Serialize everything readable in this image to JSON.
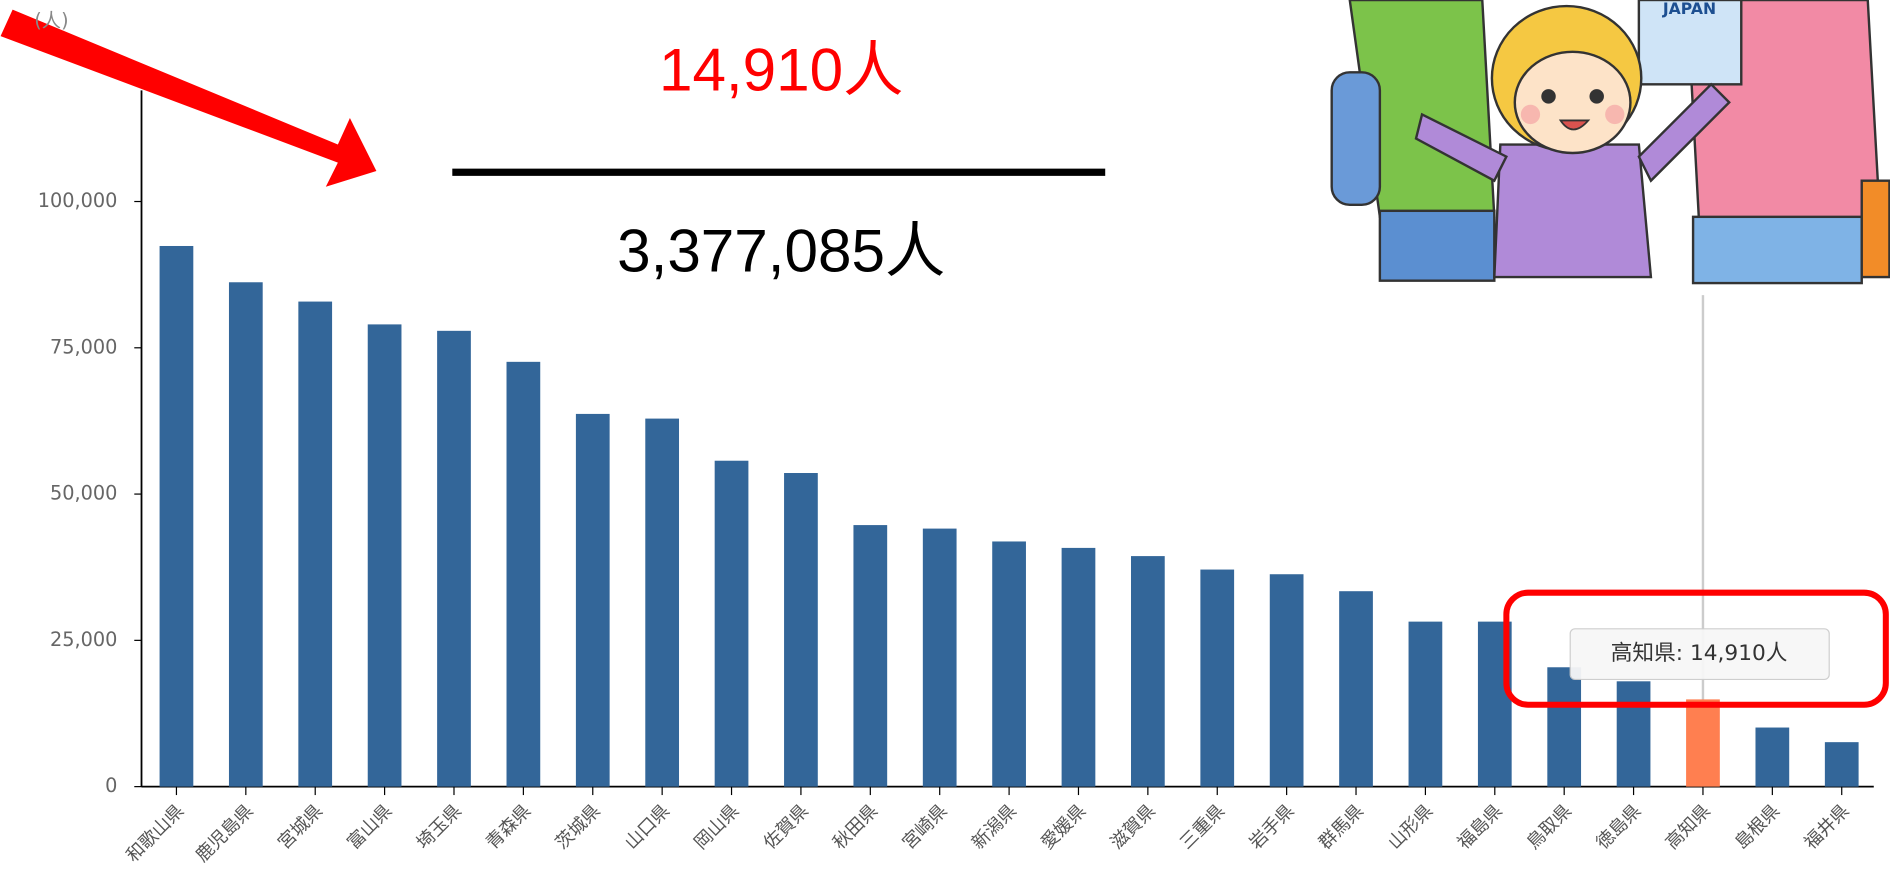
{
  "chart_data": {
    "type": "bar",
    "y_unit": "(人)",
    "fraction": {
      "numerator": "14,910人",
      "denominator": "3,377,085人"
    },
    "tooltip": "高知県: 14,910人",
    "illustration_text": "JAPAN",
    "categories": [
      "和歌山県",
      "鹿児島県",
      "宮城県",
      "富山県",
      "埼玉県",
      "青森県",
      "茨城県",
      "山口県",
      "岡山県",
      "佐賀県",
      "秋田県",
      "宮崎県",
      "新潟県",
      "愛媛県",
      "滋賀県",
      "三重県",
      "岩手県",
      "群馬県",
      "山形県",
      "福島県",
      "鳥取県",
      "徳島県",
      "高知県",
      "島根県",
      "福井県"
    ],
    "values": [
      92400,
      86200,
      82900,
      79000,
      77900,
      72600,
      63700,
      62900,
      55700,
      53600,
      44700,
      44100,
      41900,
      40800,
      39400,
      37100,
      36300,
      33400,
      28200,
      28200,
      20400,
      18000,
      14910,
      10100,
      7600
    ],
    "bar_colors": [
      "#336699",
      "#336699",
      "#336699",
      "#336699",
      "#336699",
      "#336699",
      "#336699",
      "#336699",
      "#336699",
      "#336699",
      "#336699",
      "#336699",
      "#336699",
      "#336699",
      "#336699",
      "#336699",
      "#336699",
      "#336699",
      "#336699",
      "#336699",
      "#336699",
      "#336699",
      "#ff7f50",
      "#336699",
      "#336699"
    ],
    "ylim": [
      0,
      119000
    ],
    "yticks": [
      0,
      {
        "value": 25000,
        "label": "25,000"
      },
      {
        "value": 50000,
        "label": "50,000"
      },
      {
        "value": 75000,
        "label": "75,000"
      },
      {
        "value": 100000,
        "label": "100,000"
      }
    ],
    "grid": false
  }
}
